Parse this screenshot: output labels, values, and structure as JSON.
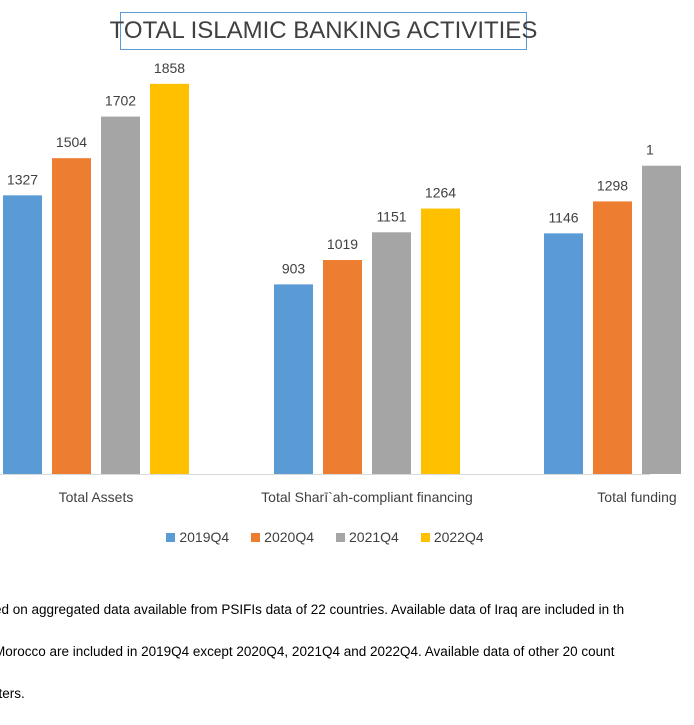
{
  "chart_data": {
    "type": "bar",
    "title": "TOTAL ISLAMIC BANKING ACTIVITIES",
    "categories": [
      "Total Assets",
      "Total Sharī`ah-compliant financing",
      "Total funding"
    ],
    "series": [
      {
        "name": "2019Q4",
        "color": "#5b9bd5",
        "values": [
          1327,
          903,
          1146
        ]
      },
      {
        "name": "2020Q4",
        "color": "#ed7d31",
        "values": [
          1504,
          1019,
          1298
        ]
      },
      {
        "name": "2021Q4",
        "color": "#a5a5a5",
        "values": [
          1702,
          1151,
          null
        ]
      },
      {
        "name": "2022Q4",
        "color": "#ffc000",
        "values": [
          1858,
          1264,
          null
        ]
      }
    ],
    "partial_label": "1",
    "ylim": [
      0,
      2000
    ],
    "grid": false,
    "legend": "bottom"
  },
  "footnote": {
    "lines": [
      "ed on aggregated data available from PSIFIs data of 22 countries. Available data of Iraq are included in th",
      "Morocco are included in 2019Q4 except 2020Q4, 2021Q4 and 2022Q4. Available data of other 20 count",
      "rters."
    ]
  }
}
